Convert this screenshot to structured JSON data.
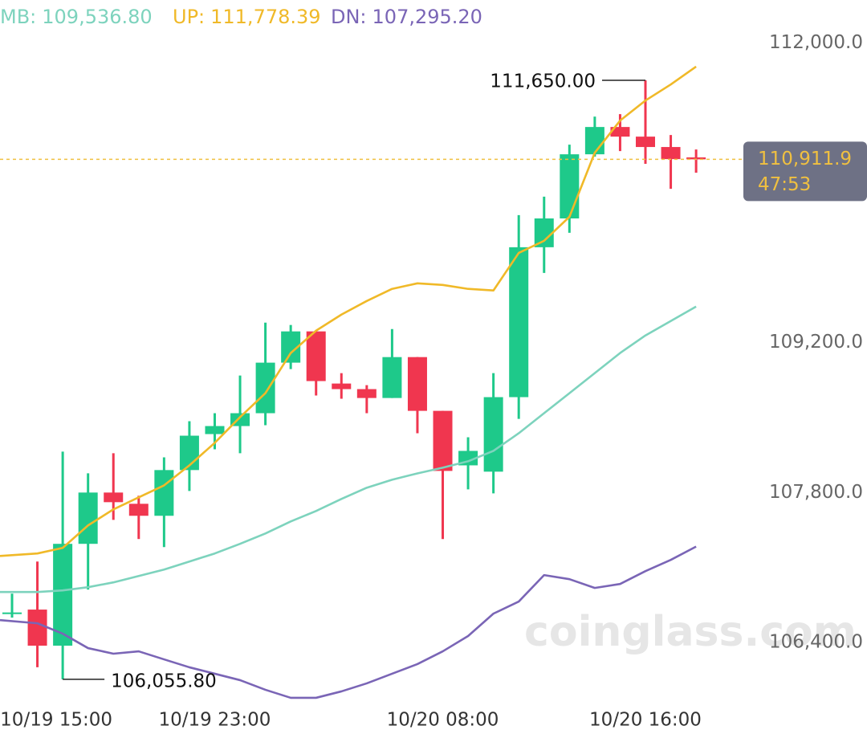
{
  "chart_data": {
    "type": "candlestick",
    "categories": [
      null,
      null,
      "10/19 15:00",
      null,
      null,
      null,
      null,
      null,
      "10/19 23:00",
      null,
      null,
      null,
      null,
      null,
      null,
      null,
      null,
      "10/20 08:00",
      null,
      null,
      null,
      null,
      null,
      null,
      null,
      "10/20 16:00",
      null,
      null
    ],
    "open": [
      106669,
      106707,
      106370,
      107321,
      107800,
      107695,
      107583,
      108010,
      108346,
      108421,
      108541,
      109013,
      109305,
      108818,
      108766,
      108683,
      109065,
      108563,
      108054,
      107995,
      108691,
      110091,
      110360,
      110959,
      111214,
      111124,
      111027,
      110930
    ],
    "high": [
      106856,
      107156,
      108182,
      107980,
      108167,
      107770,
      108129,
      108466,
      108541,
      108893,
      109387,
      109365,
      109305,
      108915,
      108803,
      109327,
      109065,
      108563,
      108316,
      108915,
      110391,
      110563,
      111049,
      111311,
      111334,
      111650,
      111139,
      111004
    ],
    "low": [
      106632,
      106168,
      106055.8,
      106894,
      107545,
      107366,
      107291,
      107815,
      108204,
      108167,
      108429,
      108953,
      108706,
      108676,
      108541,
      108683,
      108354,
      107366,
      107830,
      107792,
      108488,
      109851,
      110226,
      110937,
      110989,
      110870,
      110637,
      110787
    ],
    "close": [
      106680,
      106370,
      107321,
      107800,
      107710,
      107583,
      108010,
      108331,
      108421,
      108541,
      109013,
      109305,
      108841,
      108766,
      108683,
      109065,
      108563,
      108002,
      108189,
      108691,
      110091,
      110360,
      110959,
      111214,
      111124,
      111027,
      110914,
      110911.9
    ],
    "up_color": "#1ec98a",
    "down_color": "#f0364f",
    "overlays": [
      {
        "name": "MB:",
        "color": "#7dd3bd",
        "last_label": "109,536.80",
        "values": [
          106871,
          106871,
          106886,
          106916,
          106961,
          107021,
          107081,
          107156,
          107231,
          107321,
          107418,
          107530,
          107628,
          107740,
          107845,
          107920,
          107979,
          108032,
          108092,
          108189,
          108354,
          108541,
          108728,
          108915,
          109103,
          109267,
          109402,
          109536.8
        ]
      },
      {
        "name": "UP:",
        "color": "#f0b928",
        "last_label": "111,778.39",
        "values": [
          107208,
          107231,
          107283,
          107493,
          107643,
          107755,
          107867,
          108054,
          108264,
          108504,
          108728,
          109103,
          109312,
          109462,
          109589,
          109702,
          109754,
          109739,
          109702,
          109687,
          110038,
          110151,
          110375,
          110974,
          111274,
          111461,
          111611,
          111778.39
        ]
      },
      {
        "name": "DN:",
        "color": "#7a65b6",
        "last_label": "107,295.20",
        "values": [
          106609,
          106579,
          106482,
          106347,
          106295,
          106317,
          106242,
          106168,
          106108,
          106048,
          105958,
          105883,
          105883,
          105943,
          106018,
          106108,
          106198,
          106317,
          106460,
          106669,
          106782,
          107029,
          106991,
          106909,
          106946,
          107066,
          107171,
          107295.2
        ]
      }
    ],
    "ylim": [
      105800,
      112400
    ],
    "yticks": [
      {
        "value": 112000,
        "label": "112,000.0"
      },
      {
        "value": 109200,
        "label": "109,200.0"
      },
      {
        "value": 107800,
        "label": "107,800.0"
      },
      {
        "value": 106400,
        "label": "106,400.0"
      }
    ],
    "max_label": "111,650.00",
    "min_label": "106,055.80",
    "last_price_label": "110,911.9",
    "countdown": "47:53",
    "watermark": "coinglass.com"
  }
}
